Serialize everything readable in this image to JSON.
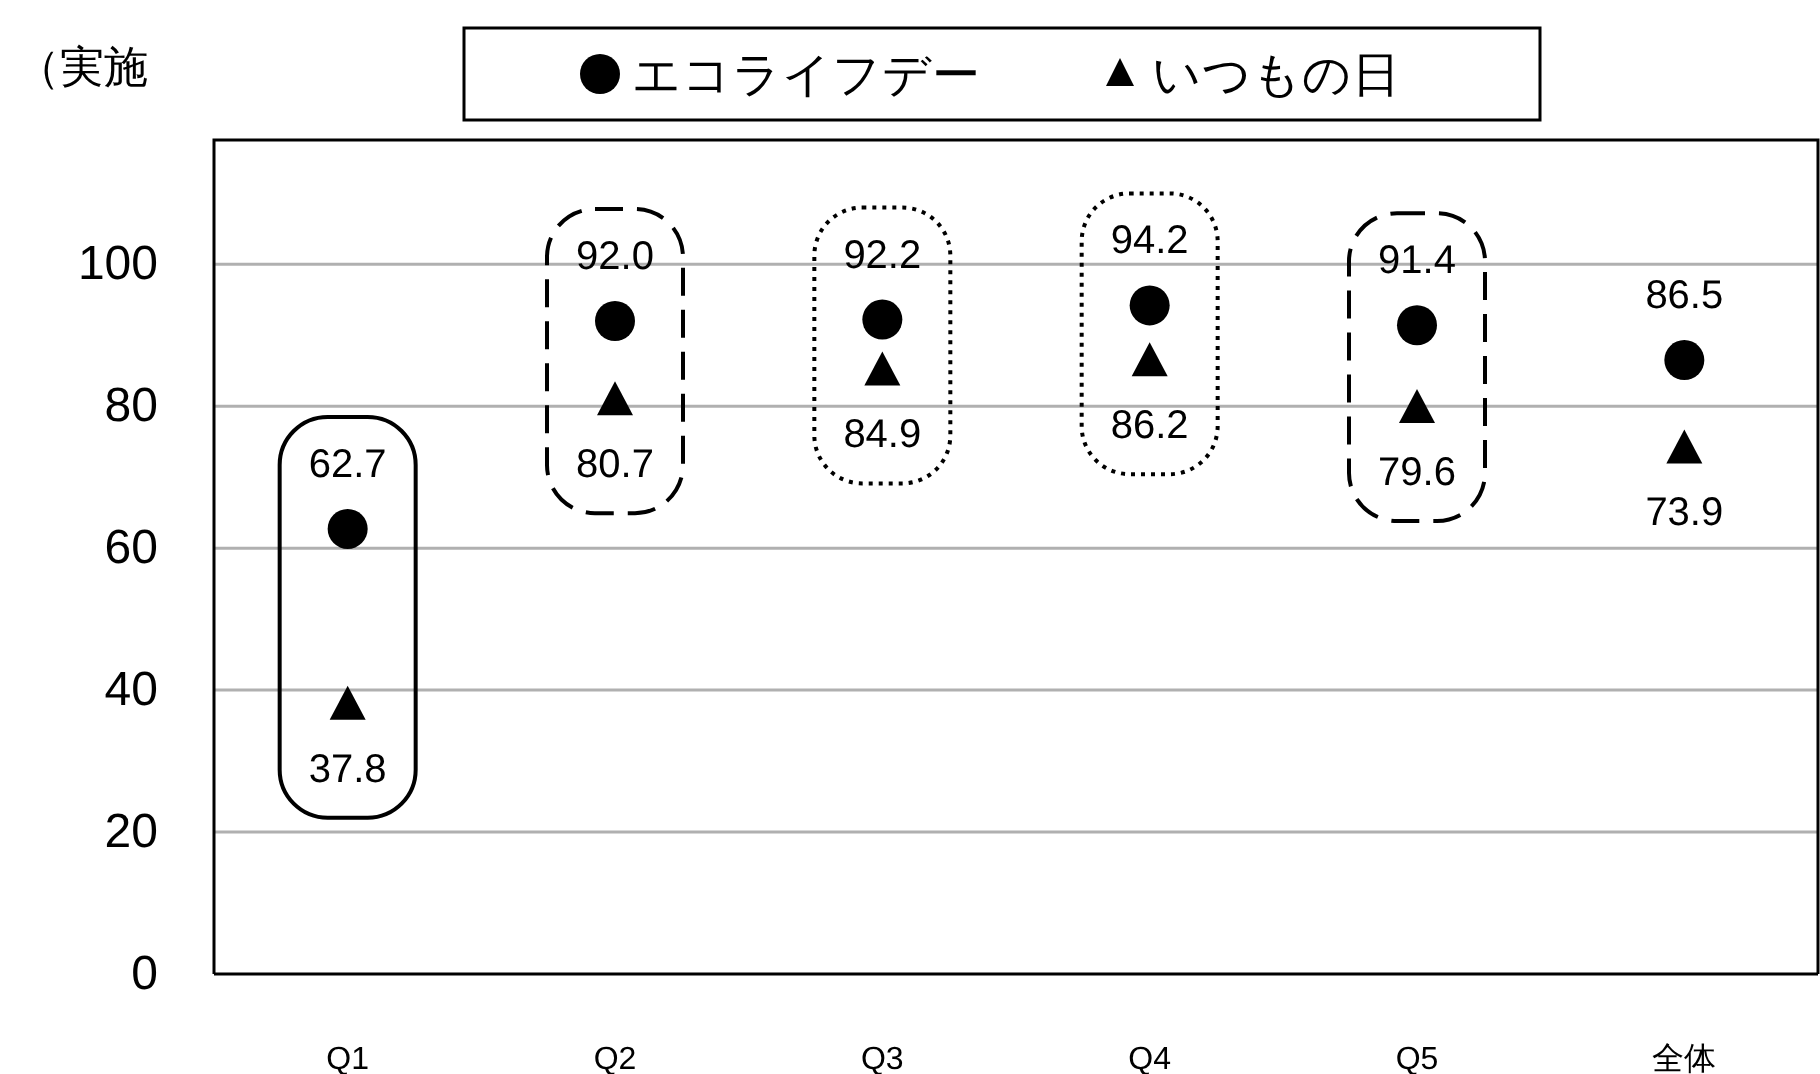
{
  "chart_data": {
    "type": "scatter",
    "ylabel": "（実施",
    "categories": [
      "Q1",
      "Q2",
      "Q3",
      "Q4",
      "Q5",
      "全体"
    ],
    "series": [
      {
        "name": "エコライフデー",
        "color": "#000000",
        "marker": "circle",
        "values": [
          62.7,
          92.0,
          92.2,
          94.2,
          91.4,
          86.5
        ],
        "value_labels": [
          "62.7",
          "92.0",
          "92.2",
          "94.2",
          "91.4",
          "86.5"
        ]
      },
      {
        "name": "いつもの日",
        "color": "#000000",
        "marker": "triangle",
        "values": [
          37.8,
          80.7,
          84.9,
          86.2,
          79.6,
          73.9
        ],
        "value_labels": [
          "37.8",
          "80.7",
          "84.9",
          "86.2",
          "79.6",
          "73.9"
        ]
      }
    ],
    "ylim": [
      0,
      117.5
    ],
    "yticks": [
      0,
      20,
      40,
      60,
      80,
      100
    ],
    "grid": "y",
    "legend": "top"
  }
}
